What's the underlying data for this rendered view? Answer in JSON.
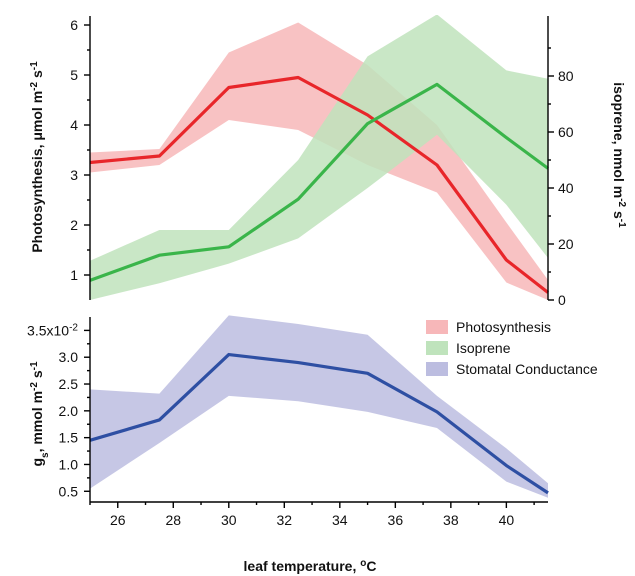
{
  "chart_data": {
    "type": "line",
    "x": [
      25,
      27.5,
      30,
      32.5,
      35,
      37.5,
      40,
      41.5
    ],
    "xlabel": "leaf temperature, °C",
    "xlim": [
      25,
      41.5
    ],
    "xticks": [
      "26",
      "28",
      "30",
      "32",
      "34",
      "36",
      "38",
      "40"
    ],
    "top_panel": {
      "left_axis": {
        "label": "Photosynthesis, μmol m-2 s-1",
        "ylim": [
          0.5,
          6.1
        ],
        "ticks": [
          "1",
          "2",
          "3",
          "4",
          "5",
          "6"
        ]
      },
      "right_axis": {
        "label": "isoprene, nmol m-2 s-1",
        "ylim": [
          0,
          100
        ],
        "ticks": [
          "0",
          "20",
          "40",
          "60",
          "80"
        ]
      },
      "series": [
        {
          "name": "Photosynthesis",
          "axis": "left",
          "values": [
            3.25,
            3.38,
            4.75,
            4.95,
            4.2,
            3.2,
            1.3,
            0.65
          ],
          "lower": [
            3.05,
            3.2,
            4.1,
            3.9,
            3.2,
            2.65,
            0.85,
            0.5
          ],
          "upper": [
            3.45,
            3.52,
            5.45,
            6.05,
            5.2,
            4.0,
            2.05,
            0.9
          ],
          "color": "#e8262a",
          "band_color": "#f7b7b9"
        },
        {
          "name": "Isoprene",
          "axis": "right",
          "values": [
            7,
            16,
            19,
            36,
            63,
            77,
            58,
            47
          ],
          "lower": [
            0,
            6,
            13,
            22,
            40,
            59,
            34,
            15
          ],
          "upper": [
            14,
            25,
            25,
            50,
            87,
            102,
            82,
            79
          ],
          "color": "#3ab54a",
          "band_color": "#bfe3bc"
        }
      ]
    },
    "bottom_panel": {
      "axis_label": "gs, mmol m-2 s-1",
      "ylim": [
        0.3,
        3.75
      ],
      "ticks": [
        "0.5",
        "1.0",
        "1.5",
        "2.0",
        "2.5",
        "3.0",
        "3.5x10-2"
      ],
      "series": [
        {
          "name": "Stomatal Conductance",
          "values": [
            1.45,
            1.83,
            3.05,
            2.9,
            2.7,
            1.98,
            0.98,
            0.47
          ],
          "lower": [
            0.55,
            1.4,
            2.28,
            2.18,
            1.98,
            1.68,
            0.68,
            0.38
          ],
          "upper": [
            2.4,
            2.32,
            3.78,
            3.62,
            3.42,
            2.28,
            1.3,
            0.65
          ],
          "color": "#2e4fa3",
          "band_color": "#bcbde0"
        }
      ]
    },
    "legend": {
      "position": "right, between panels",
      "entries": [
        "Photosynthesis",
        "Isoprene",
        "Stomatal Conductance"
      ]
    }
  }
}
